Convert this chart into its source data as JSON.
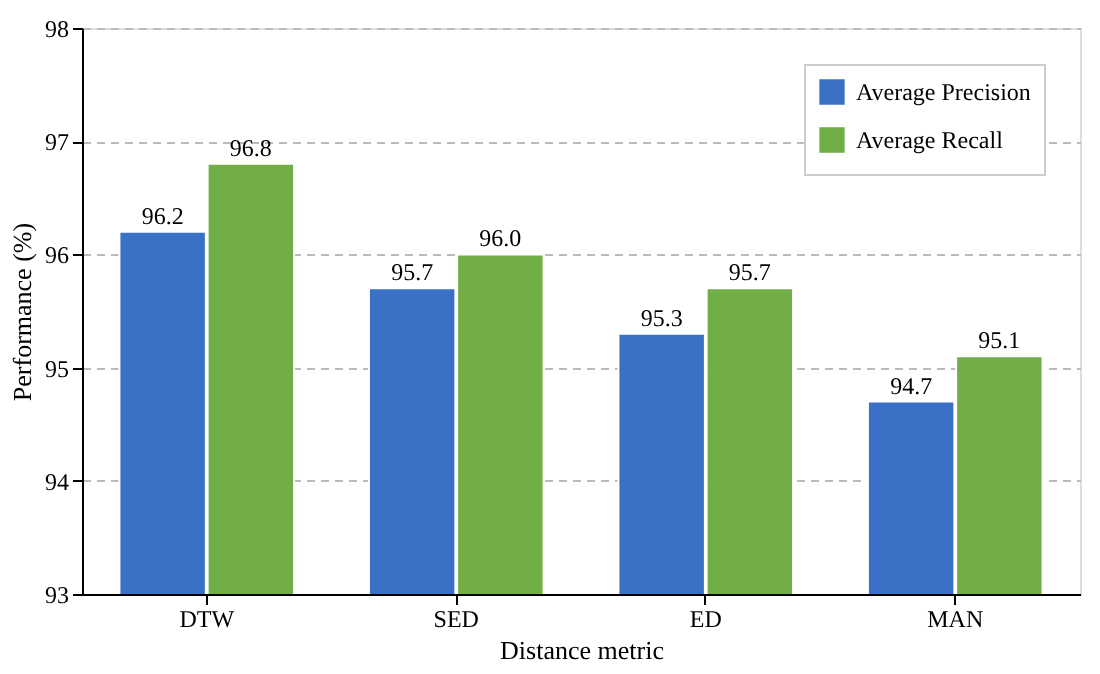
{
  "chart_data": {
    "type": "bar",
    "xlabel": "Distance metric",
    "ylabel": "Performance (%)",
    "categories": [
      "DTW",
      "SED",
      "ED",
      "MAN"
    ],
    "series": [
      {
        "name": "Average Precision",
        "color": "#3a70c6",
        "values": [
          96.2,
          95.7,
          95.3,
          94.7
        ],
        "value_labels": [
          "96.2",
          "95.7",
          "95.3",
          "94.7"
        ]
      },
      {
        "name": "Average Recall",
        "color": "#72ae46",
        "values": [
          96.8,
          96.0,
          95.7,
          95.1
        ],
        "value_labels": [
          "96.8",
          "96.0",
          "95.7",
          "95.1"
        ]
      }
    ],
    "ylim": [
      93,
      98
    ],
    "yticks": [
      93,
      94,
      95,
      96,
      97,
      98
    ],
    "grid": "y",
    "legend": "top right"
  }
}
